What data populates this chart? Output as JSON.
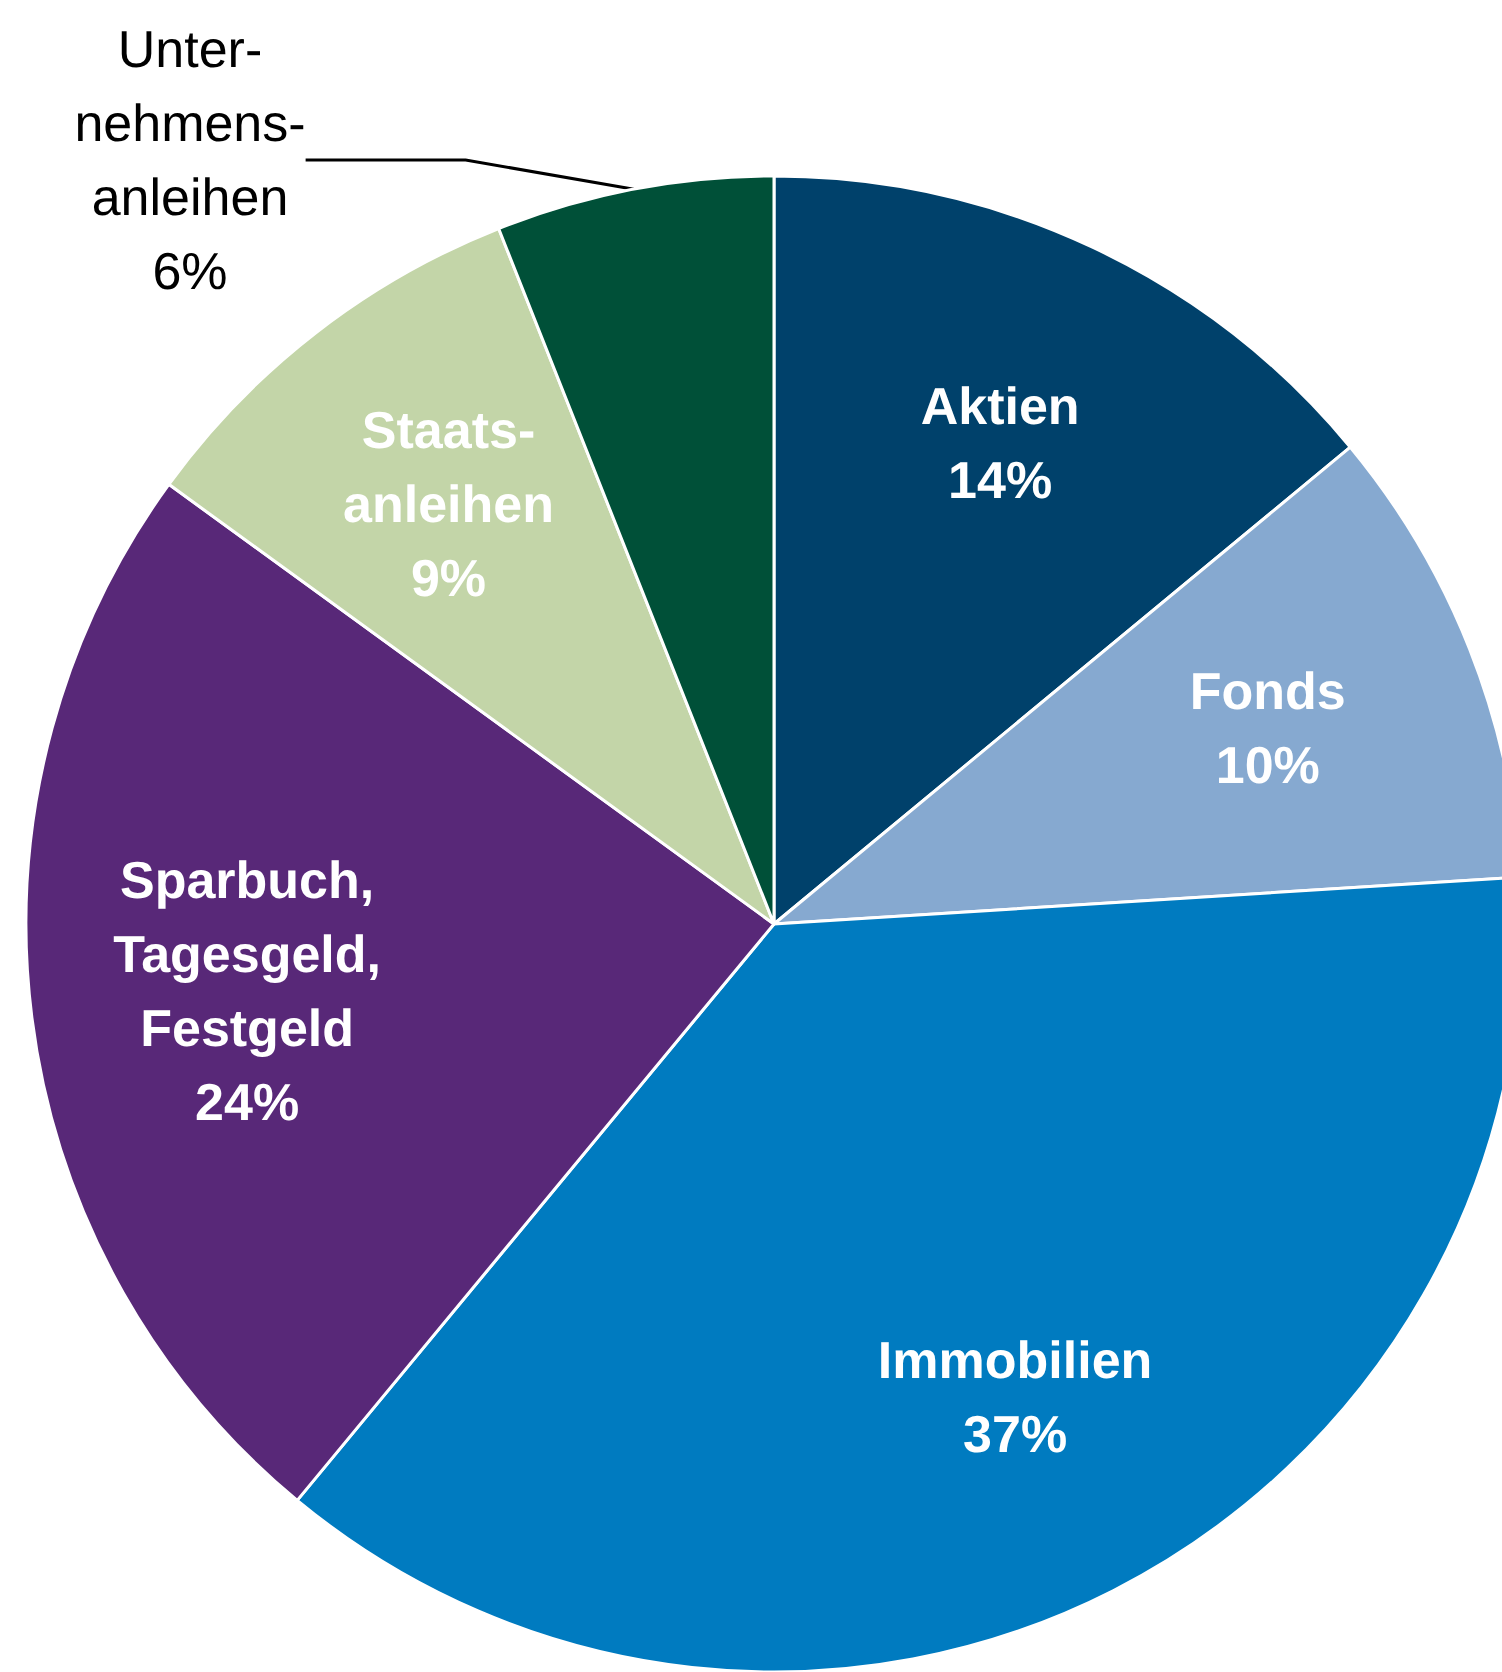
{
  "chart_data": {
    "type": "pie",
    "categories": [
      "Aktien",
      "Fonds",
      "Immobilien",
      "Sparbuch,\nTagesgeld,\nFestgeld",
      "Staats-\nanleihen",
      "Unter-\nnehmens-\nanleihen"
    ],
    "values": [
      14,
      10,
      37,
      24,
      9,
      6
    ],
    "colors": [
      "#00416b",
      "#86a9d0",
      "#007bc0",
      "#582878",
      "#c3d5a8",
      "#005038"
    ],
    "value_labels": [
      "14%",
      "10%",
      "37%",
      "24%",
      "9%",
      "6%"
    ],
    "legend": false
  }
}
